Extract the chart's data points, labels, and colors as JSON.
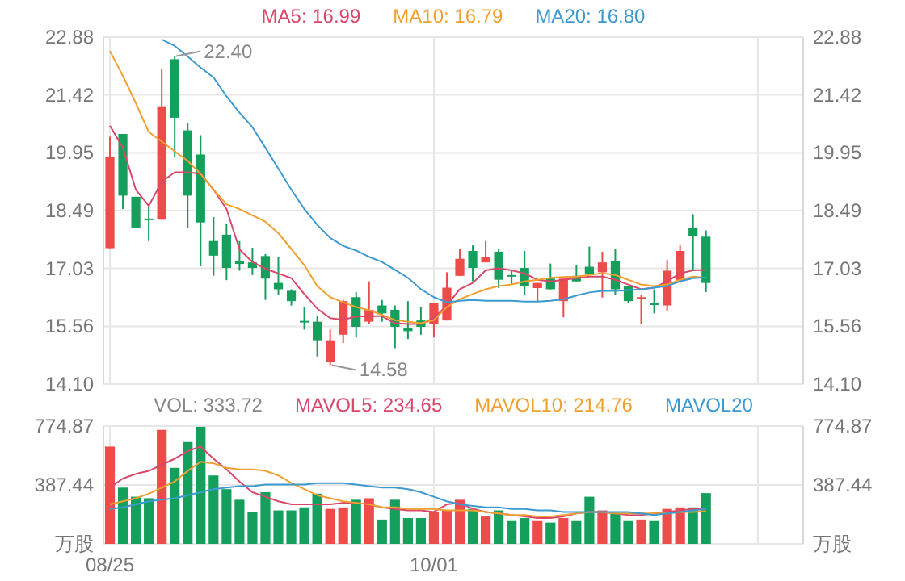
{
  "chart_data": [
    {
      "type": "candlestick",
      "categories": [
        null,
        null,
        null,
        null,
        null,
        null,
        null,
        null,
        null,
        null,
        null,
        null,
        null,
        null,
        null,
        null,
        null,
        null,
        null,
        null,
        null,
        null,
        null,
        null,
        null,
        null,
        null,
        null,
        null,
        null,
        null,
        null,
        null,
        null,
        null,
        null,
        null,
        null,
        null,
        null,
        null,
        null,
        null,
        null,
        null,
        null,
        null,
        null,
        null,
        null,
        null,
        null,
        null,
        null
      ],
      "ohlc": [
        [
          17.54,
          20.36,
          17.54,
          19.86
        ],
        [
          20.43,
          20.43,
          18.53,
          18.87
        ],
        [
          18.84,
          18.84,
          18.06,
          18.06
        ],
        [
          18.29,
          18.61,
          17.72,
          18.29
        ],
        [
          18.26,
          22.08,
          18.26,
          21.13
        ],
        [
          22.32,
          22.4,
          19.84,
          20.84
        ],
        [
          20.52,
          20.7,
          18.06,
          18.87
        ],
        [
          19.91,
          20.4,
          17.08,
          18.19
        ],
        [
          17.72,
          18.33,
          16.84,
          17.35
        ],
        [
          17.88,
          18.15,
          16.73,
          17.04
        ],
        [
          17.22,
          17.72,
          16.97,
          17.14
        ],
        [
          17.18,
          17.55,
          16.86,
          17.04
        ],
        [
          17.34,
          17.39,
          16.23,
          16.77
        ],
        [
          16.66,
          17.31,
          16.36,
          16.5
        ],
        [
          16.46,
          16.5,
          16.09,
          16.2
        ],
        [
          15.7,
          16.06,
          15.48,
          15.66
        ],
        [
          15.68,
          15.82,
          14.8,
          15.21
        ],
        [
          14.66,
          15.48,
          14.58,
          15.21
        ],
        [
          15.35,
          16.23,
          15.14,
          16.2
        ],
        [
          16.3,
          16.43,
          15.28,
          15.55
        ],
        [
          15.68,
          16.7,
          15.62,
          15.98
        ],
        [
          16.09,
          16.23,
          15.68,
          15.89
        ],
        [
          15.98,
          16.09,
          15.01,
          15.55
        ],
        [
          15.52,
          16.2,
          15.24,
          15.44
        ],
        [
          15.71,
          16.06,
          15.35,
          15.55
        ],
        [
          15.62,
          16.16,
          15.28,
          16.16
        ],
        [
          15.71,
          16.93,
          15.71,
          16.54
        ],
        [
          16.84,
          17.51,
          16.84,
          17.27
        ],
        [
          17.47,
          17.61,
          16.7,
          17.04
        ],
        [
          17.18,
          17.72,
          17.18,
          17.31
        ],
        [
          17.45,
          17.51,
          16.53,
          16.74
        ],
        [
          16.86,
          16.97,
          16.63,
          16.82
        ],
        [
          17.04,
          17.47,
          16.36,
          16.57
        ],
        [
          16.53,
          16.66,
          16.2,
          16.66
        ],
        [
          16.77,
          17.15,
          16.5,
          16.5
        ],
        [
          16.2,
          16.77,
          15.79,
          16.77
        ],
        [
          16.84,
          17.11,
          16.7,
          16.7
        ],
        [
          17.07,
          17.58,
          16.88,
          16.88
        ],
        [
          16.93,
          17.45,
          16.29,
          17.18
        ],
        [
          17.22,
          17.51,
          16.36,
          16.5
        ],
        [
          16.57,
          16.57,
          16.16,
          16.2
        ],
        [
          16.28,
          16.36,
          15.62,
          16.3
        ],
        [
          16.16,
          16.5,
          15.89,
          16.1
        ],
        [
          16.09,
          17.24,
          15.96,
          16.97
        ],
        [
          16.73,
          17.61,
          16.66,
          17.47
        ],
        [
          18.06,
          18.4,
          16.97,
          17.85
        ],
        [
          17.83,
          17.99,
          16.43,
          16.66
        ],
        null,
        null,
        null,
        null,
        null,
        null,
        null
      ],
      "colors": [
        "#ee4b4b",
        "#14a05c",
        "#14a05c",
        "#14a05c",
        "#ee4b4b",
        "#14a05c",
        "#14a05c",
        "#14a05c",
        "#14a05c",
        "#14a05c",
        "#14a05c",
        "#14a05c",
        "#14a05c",
        "#14a05c",
        "#14a05c",
        "#14a05c",
        "#14a05c",
        "#ee4b4b",
        "#ee4b4b",
        "#14a05c",
        "#ee4b4b",
        "#14a05c",
        "#14a05c",
        "#14a05c",
        "#14a05c",
        "#ee4b4b",
        "#ee4b4b",
        "#ee4b4b",
        "#14a05c",
        "#ee4b4b",
        "#14a05c",
        "#14a05c",
        "#14a05c",
        "#ee4b4b",
        "#14a05c",
        "#ee4b4b",
        "#14a05c",
        "#14a05c",
        "#ee4b4b",
        "#14a05c",
        "#14a05c",
        "#ee4b4b",
        "#14a05c",
        "#ee4b4b",
        "#ee4b4b",
        "#14a05c",
        "#14a05c",
        null,
        null,
        null,
        null,
        null,
        null,
        null
      ],
      "series": [
        {
          "name": "MA5: 16.99",
          "type": "line",
          "color": "#d9486b",
          "values": [
            20.64,
            20.08,
            19.02,
            18.61,
            19.22,
            19.46,
            19.46,
            19.42,
            19.02,
            18.53,
            17.51,
            17.19,
            17.02,
            16.9,
            16.78,
            16.38,
            16.01,
            15.77,
            15.73,
            15.81,
            15.82,
            15.82,
            15.64,
            15.62,
            15.62,
            15.77,
            16.09,
            16.5,
            16.66,
            16.98,
            17.03,
            16.98,
            16.9,
            16.74,
            16.7,
            16.74,
            16.78,
            16.82,
            16.82,
            16.74,
            16.62,
            16.5,
            16.54,
            16.7,
            16.9,
            16.98,
            16.99,
            null,
            null,
            null,
            null,
            null,
            null,
            null
          ]
        },
        {
          "name": "MA10: 16.79",
          "type": "line",
          "color": "#f0a030",
          "values": [
            22.53,
            21.9,
            21.21,
            20.48,
            20.24,
            19.99,
            19.75,
            19.42,
            19.02,
            18.65,
            18.53,
            18.37,
            18.21,
            17.92,
            17.52,
            17.11,
            16.58,
            16.3,
            16.17,
            16.05,
            15.97,
            15.85,
            15.72,
            15.68,
            15.64,
            15.72,
            16.05,
            16.25,
            16.38,
            16.5,
            16.58,
            16.62,
            16.7,
            16.74,
            16.79,
            16.81,
            16.82,
            16.86,
            16.91,
            16.86,
            16.74,
            16.62,
            16.58,
            16.62,
            16.74,
            16.82,
            16.79,
            null,
            null,
            null,
            null,
            null,
            null,
            null
          ]
        },
        {
          "name": "MA20: 16.80",
          "type": "line",
          "color": "#3d9ad1",
          "values": [
            null,
            null,
            null,
            null,
            22.82,
            22.66,
            22.39,
            22.11,
            21.86,
            21.38,
            20.97,
            20.6,
            20.08,
            19.55,
            19.02,
            18.53,
            18.13,
            17.8,
            17.6,
            17.48,
            17.32,
            17.19,
            16.99,
            16.79,
            16.5,
            16.3,
            16.17,
            16.21,
            16.23,
            16.21,
            16.21,
            16.21,
            16.19,
            16.19,
            16.21,
            16.25,
            16.34,
            16.42,
            16.46,
            16.46,
            16.48,
            16.5,
            16.54,
            16.58,
            16.7,
            16.78,
            16.8,
            null,
            null,
            null,
            null,
            null,
            null,
            null
          ]
        }
      ],
      "ylim": [
        14.1,
        22.88
      ],
      "yticks": [
        {
          "value": 14.1,
          "label": "14.10"
        },
        15.56,
        17.03,
        18.49,
        19.95,
        21.42,
        22.88
      ],
      "y2lim": [
        14.1,
        22.88
      ],
      "y2ticks": [
        {
          "value": 14.1,
          "label": "14.10"
        },
        15.56,
        17.03,
        18.49,
        19.95,
        21.42,
        22.88
      ],
      "tick_labels": "y",
      "grid": true,
      "legend": "top",
      "annotations": [
        "22.40",
        "14.58"
      ]
    },
    {
      "type": "bar",
      "categories": [
        "08/25",
        null,
        null,
        null,
        null,
        null,
        null,
        null,
        null,
        null,
        null,
        null,
        null,
        null,
        null,
        null,
        null,
        null,
        null,
        null,
        null,
        null,
        null,
        null,
        null,
        "10/01",
        null,
        null,
        null,
        null,
        null,
        null,
        null,
        null,
        null,
        null,
        null,
        null,
        null,
        null,
        null,
        null,
        null,
        null,
        null,
        null,
        null,
        null,
        null,
        null,
        null,
        null,
        null,
        null
      ],
      "series": [
        {
          "name": "VOL: 333.72",
          "colors": [
            "#ee4b4b",
            "#14a05c",
            "#14a05c",
            "#14a05c",
            "#ee4b4b",
            "#14a05c",
            "#14a05c",
            "#14a05c",
            "#14a05c",
            "#14a05c",
            "#14a05c",
            "#14a05c",
            "#14a05c",
            "#14a05c",
            "#14a05c",
            "#14a05c",
            "#14a05c",
            "#ee4b4b",
            "#ee4b4b",
            "#14a05c",
            "#ee4b4b",
            "#14a05c",
            "#14a05c",
            "#14a05c",
            "#14a05c",
            "#ee4b4b",
            "#ee4b4b",
            "#ee4b4b",
            "#14a05c",
            "#ee4b4b",
            "#14a05c",
            "#14a05c",
            "#14a05c",
            "#ee4b4b",
            "#14a05c",
            "#ee4b4b",
            "#14a05c",
            "#14a05c",
            "#ee4b4b",
            "#14a05c",
            "#14a05c",
            "#ee4b4b",
            "#14a05c",
            "#ee4b4b",
            "#ee4b4b",
            "#14a05c",
            "#14a05c",
            null,
            null,
            null,
            null,
            null,
            null,
            null
          ],
          "values": [
            640,
            370,
            310,
            300,
            750,
            500,
            670,
            770,
            450,
            360,
            290,
            210,
            340,
            220,
            220,
            240,
            330,
            230,
            240,
            290,
            300,
            160,
            290,
            170,
            170,
            210,
            220,
            290,
            230,
            180,
            220,
            150,
            170,
            150,
            140,
            170,
            150,
            310,
            220,
            200,
            150,
            160,
            150,
            230,
            240,
            240,
            333.72,
            null,
            null,
            null,
            null,
            null,
            null,
            null
          ]
        },
        {
          "name": "MAVOL5: 234.65",
          "type": "line",
          "color": "#d9486b",
          "values": [
            370,
            430,
            460,
            480,
            520,
            560,
            610,
            640,
            560,
            490,
            410,
            340,
            310,
            280,
            260,
            260,
            260,
            260,
            270,
            270,
            260,
            240,
            230,
            220,
            220,
            210,
            260,
            270,
            230,
            210,
            200,
            190,
            180,
            170,
            170,
            180,
            200,
            210,
            210,
            200,
            190,
            190,
            200,
            210,
            220,
            230,
            234.65,
            null,
            null,
            null,
            null,
            null,
            null,
            null
          ]
        },
        {
          "name": "MAVOL10: 214.76",
          "type": "line",
          "color": "#f0a030",
          "values": [
            260,
            280,
            300,
            330,
            370,
            410,
            480,
            540,
            530,
            500,
            490,
            490,
            480,
            450,
            400,
            360,
            320,
            300,
            280,
            270,
            260,
            240,
            240,
            230,
            230,
            230,
            220,
            220,
            220,
            210,
            200,
            190,
            190,
            180,
            180,
            190,
            200,
            210,
            210,
            200,
            200,
            200,
            200,
            200,
            210,
            210,
            214.76,
            null,
            null,
            null,
            null,
            null,
            null,
            null
          ]
        },
        {
          "name": "MAVOL20",
          "type": "line",
          "color": "#3d9ad1",
          "values": [
            230,
            240,
            260,
            280,
            290,
            300,
            320,
            340,
            360,
            370,
            380,
            380,
            390,
            390,
            390,
            390,
            400,
            400,
            400,
            390,
            380,
            370,
            370,
            360,
            340,
            310,
            280,
            260,
            250,
            240,
            240,
            230,
            230,
            220,
            220,
            210,
            210,
            210,
            210,
            210,
            210,
            200,
            190,
            200,
            210,
            220,
            230,
            null,
            null,
            null,
            null,
            null,
            null,
            null
          ]
        }
      ],
      "ylim": [
        0,
        774.87
      ],
      "yticks": [
        {
          "value": 0,
          "label": "万股"
        },
        387.44,
        774.87
      ],
      "y2lim": [
        0,
        774.87
      ],
      "y2ticks": [
        {
          "value": 0,
          "label": "万股"
        },
        387.44,
        774.87
      ],
      "grid": true,
      "legend": "top"
    }
  ]
}
